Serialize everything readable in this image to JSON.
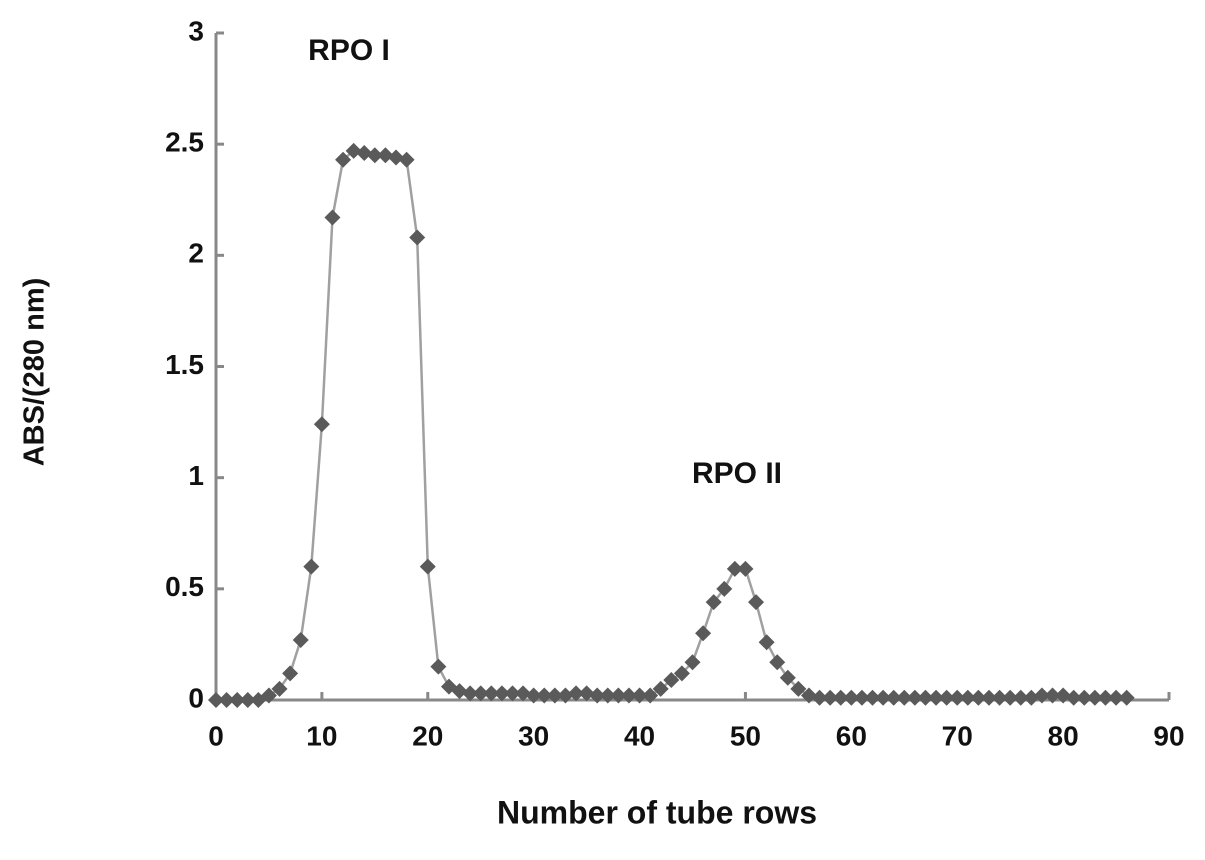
{
  "chart_data": {
    "type": "line",
    "ylabel": "ABS/(280 nm)",
    "xlabel": "Number of tube rows",
    "annotations": [
      "RPO I",
      "RPO II"
    ],
    "x": [
      0,
      1,
      2,
      3,
      4,
      5,
      6,
      7,
      8,
      9,
      10,
      11,
      12,
      13,
      14,
      15,
      16,
      17,
      18,
      19,
      20,
      21,
      22,
      23,
      24,
      25,
      26,
      27,
      28,
      29,
      30,
      31,
      32,
      33,
      34,
      35,
      36,
      37,
      38,
      39,
      40,
      41,
      42,
      43,
      44,
      45,
      46,
      47,
      48,
      49,
      50,
      51,
      52,
      53,
      54,
      55,
      56,
      57,
      58,
      59,
      60,
      61,
      62,
      63,
      64,
      65,
      66,
      67,
      68,
      69,
      70,
      71,
      72,
      73,
      74,
      75,
      76,
      77,
      78,
      79,
      80,
      81,
      82,
      83,
      84,
      85,
      86
    ],
    "series": [
      {
        "name": "ABS",
        "color": "#5a5a5a",
        "line_color": "#a0a0a0",
        "values": [
          0,
          0,
          0,
          0,
          0,
          0.02,
          0.05,
          0.12,
          0.27,
          0.6,
          1.24,
          2.17,
          2.43,
          2.47,
          2.46,
          2.45,
          2.45,
          2.44,
          2.43,
          2.08,
          0.6,
          0.15,
          0.06,
          0.04,
          0.03,
          0.03,
          0.03,
          0.03,
          0.03,
          0.03,
          0.02,
          0.02,
          0.02,
          0.02,
          0.03,
          0.03,
          0.02,
          0.02,
          0.02,
          0.02,
          0.02,
          0.02,
          0.05,
          0.09,
          0.12,
          0.17,
          0.3,
          0.44,
          0.5,
          0.59,
          0.59,
          0.44,
          0.26,
          0.17,
          0.1,
          0.05,
          0.02,
          0.01,
          0.01,
          0.01,
          0.01,
          0.01,
          0.01,
          0.01,
          0.01,
          0.01,
          0.01,
          0.01,
          0.01,
          0.01,
          0.01,
          0.01,
          0.01,
          0.01,
          0.01,
          0.01,
          0.01,
          0.01,
          0.02,
          0.02,
          0.02,
          0.01,
          0.01,
          0.01,
          0.01,
          0.01,
          0.01
        ]
      }
    ],
    "xlim": [
      0,
      90
    ],
    "xticks": [
      0,
      10,
      20,
      30,
      40,
      50,
      60,
      70,
      80,
      90
    ],
    "ylim": [
      0,
      3
    ],
    "yticks": [
      0,
      0.5,
      1,
      1.5,
      2,
      2.5,
      3
    ]
  }
}
